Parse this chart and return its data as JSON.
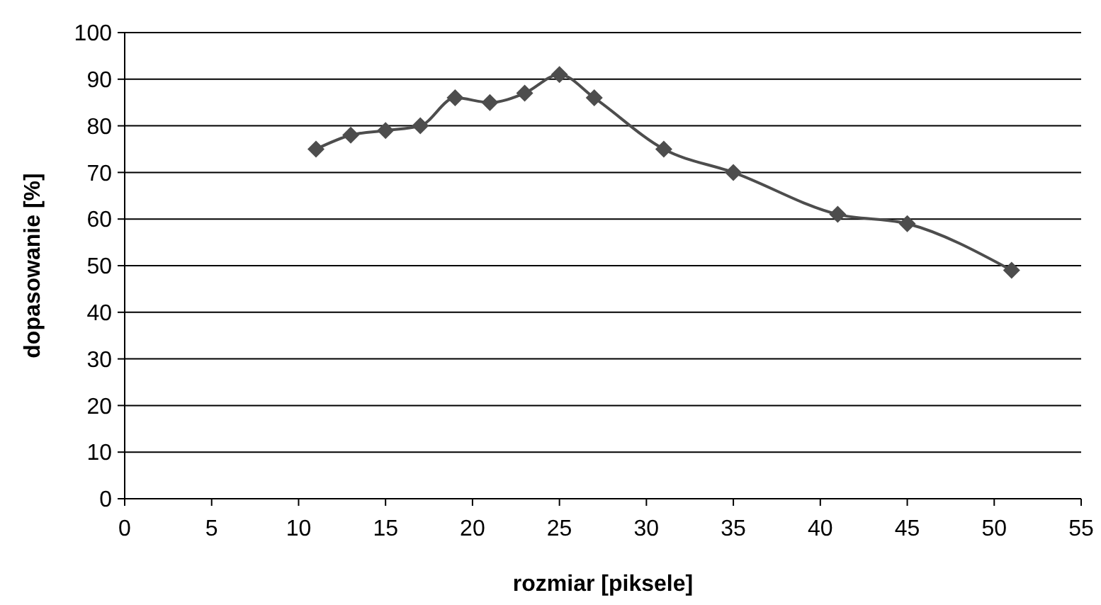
{
  "chart_data": {
    "type": "line",
    "xlabel": "rozmiar [piksele]",
    "ylabel": "dopasowanie [%]",
    "x": [
      11,
      13,
      15,
      17,
      19,
      21,
      23,
      25,
      27,
      31,
      35,
      41,
      45,
      51
    ],
    "series": [
      {
        "color": "#4d4d4d",
        "values": [
          75,
          78,
          79,
          80,
          86,
          85,
          87,
          91,
          86,
          75,
          70,
          61,
          59,
          49
        ]
      }
    ],
    "xlim": [
      0,
      55
    ],
    "xticks": [
      0,
      5,
      10,
      15,
      20,
      25,
      30,
      35,
      40,
      45,
      50,
      55
    ],
    "ylim": [
      0,
      100
    ],
    "yticks": [
      0,
      10,
      20,
      30,
      40,
      50,
      60,
      70,
      80,
      90,
      100
    ],
    "grid": "y",
    "marker": "diamond",
    "line_style": "solid"
  }
}
